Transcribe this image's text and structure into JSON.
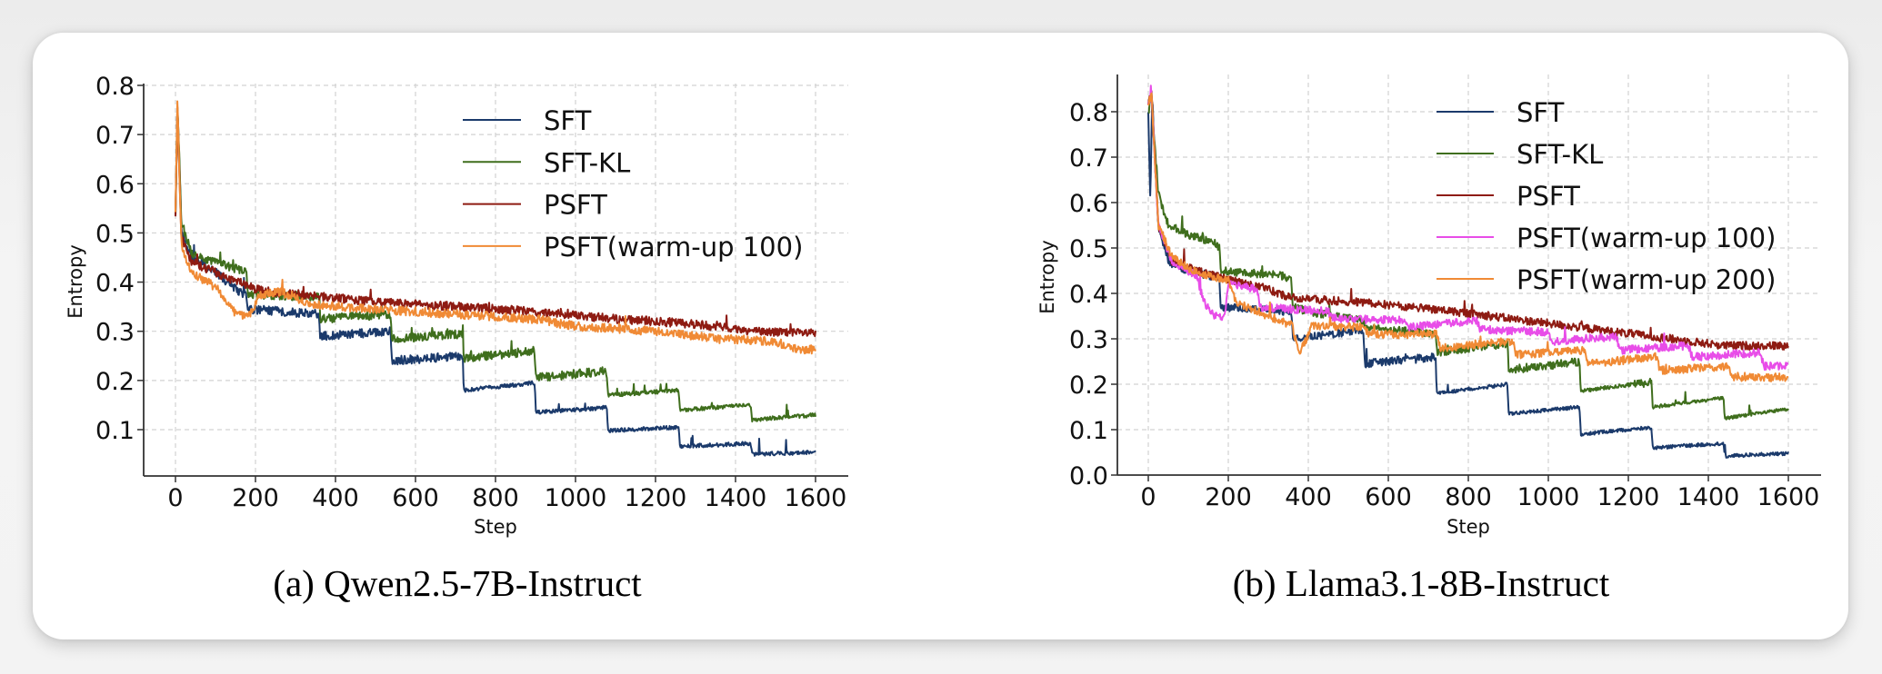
{
  "figure": {
    "captions": [
      "(a) Qwen2.5-7B-Instruct",
      "(b) Llama3.1-8B-Instruct"
    ]
  },
  "chart_data": [
    {
      "type": "line",
      "title": "",
      "caption": "(a) Qwen2.5-7B-Instruct",
      "xlabel": "Step",
      "ylabel": "Entropy",
      "xlim": [
        -80,
        1680
      ],
      "ylim": [
        0.005,
        0.81
      ],
      "xticks": [
        0,
        200,
        400,
        600,
        800,
        1000,
        1200,
        1400,
        1600
      ],
      "xtick_labels": [
        "0",
        "200",
        "400",
        "600",
        "800",
        "1000",
        "1200",
        "1400",
        "1600"
      ],
      "yticks": [
        0.1,
        0.2,
        0.3,
        0.4,
        0.5,
        0.6,
        0.7,
        0.8
      ],
      "ytick_labels": [
        "0.1",
        "0.2",
        "0.3",
        "0.4",
        "0.5",
        "0.6",
        "0.7",
        "0.8"
      ],
      "grid": true,
      "legend_position": "top-right",
      "series": [
        {
          "name": "SFT",
          "color": "#1b3a6b",
          "points": [
            [
              0,
              0.53
            ],
            [
              5,
              0.76
            ],
            [
              15,
              0.5
            ],
            [
              40,
              0.45
            ],
            [
              100,
              0.42
            ],
            [
              130,
              0.4
            ],
            [
              178,
              0.37
            ],
            [
              181,
              0.345
            ],
            [
              358,
              0.335
            ],
            [
              361,
              0.29
            ],
            [
              538,
              0.3
            ],
            [
              541,
              0.24
            ],
            [
              718,
              0.25
            ],
            [
              721,
              0.18
            ],
            [
              898,
              0.195
            ],
            [
              901,
              0.135
            ],
            [
              1078,
              0.145
            ],
            [
              1081,
              0.098
            ],
            [
              1258,
              0.105
            ],
            [
              1261,
              0.066
            ],
            [
              1438,
              0.072
            ],
            [
              1441,
              0.05
            ],
            [
              1600,
              0.054
            ]
          ]
        },
        {
          "name": "SFT-KL",
          "color": "#3f6e1d",
          "points": [
            [
              0,
              0.53
            ],
            [
              5,
              0.77
            ],
            [
              15,
              0.52
            ],
            [
              40,
              0.46
            ],
            [
              100,
              0.44
            ],
            [
              178,
              0.42
            ],
            [
              181,
              0.375
            ],
            [
              358,
              0.37
            ],
            [
              361,
              0.325
            ],
            [
              538,
              0.335
            ],
            [
              541,
              0.285
            ],
            [
              718,
              0.295
            ],
            [
              721,
              0.245
            ],
            [
              898,
              0.26
            ],
            [
              901,
              0.205
            ],
            [
              1078,
              0.22
            ],
            [
              1081,
              0.17
            ],
            [
              1258,
              0.18
            ],
            [
              1261,
              0.14
            ],
            [
              1438,
              0.15
            ],
            [
              1441,
              0.12
            ],
            [
              1600,
              0.13
            ]
          ]
        },
        {
          "name": "PSFT",
          "color": "#8e1b12",
          "points": [
            [
              0,
              0.53
            ],
            [
              5,
              0.76
            ],
            [
              15,
              0.49
            ],
            [
              40,
              0.44
            ],
            [
              100,
              0.42
            ],
            [
              200,
              0.385
            ],
            [
              300,
              0.375
            ],
            [
              500,
              0.36
            ],
            [
              700,
              0.35
            ],
            [
              900,
              0.34
            ],
            [
              1100,
              0.325
            ],
            [
              1300,
              0.315
            ],
            [
              1450,
              0.3
            ],
            [
              1600,
              0.295
            ]
          ]
        },
        {
          "name": "PSFT(warm-up 100)",
          "color": "#f08a35",
          "points": [
            [
              0,
              0.54
            ],
            [
              5,
              0.77
            ],
            [
              15,
              0.47
            ],
            [
              40,
              0.42
            ],
            [
              100,
              0.39
            ],
            [
              130,
              0.36
            ],
            [
              150,
              0.335
            ],
            [
              185,
              0.33
            ],
            [
              210,
              0.375
            ],
            [
              260,
              0.38
            ],
            [
              300,
              0.37
            ],
            [
              330,
              0.355
            ],
            [
              500,
              0.345
            ],
            [
              700,
              0.335
            ],
            [
              900,
              0.325
            ],
            [
              1000,
              0.31
            ],
            [
              1200,
              0.3
            ],
            [
              1350,
              0.285
            ],
            [
              1500,
              0.28
            ],
            [
              1540,
              0.265
            ],
            [
              1600,
              0.262
            ]
          ]
        }
      ]
    },
    {
      "type": "line",
      "title": "",
      "caption": "(b) Llama3.1-8B-Instruct",
      "xlabel": "Step",
      "ylabel": "Entropy",
      "xlim": [
        -80,
        1680
      ],
      "ylim": [
        0.0,
        0.88
      ],
      "xticks": [
        0,
        200,
        400,
        600,
        800,
        1000,
        1200,
        1400,
        1600
      ],
      "xtick_labels": [
        "0",
        "200",
        "400",
        "600",
        "800",
        "1000",
        "1200",
        "1400",
        "1600"
      ],
      "yticks": [
        0.0,
        0.1,
        0.2,
        0.3,
        0.4,
        0.5,
        0.6,
        0.7,
        0.8
      ],
      "ytick_labels": [
        "0.0",
        "0.1",
        "0.2",
        "0.3",
        "0.4",
        "0.5",
        "0.6",
        "0.7",
        "0.8"
      ],
      "grid": true,
      "legend_position": "top-right",
      "series": [
        {
          "name": "SFT",
          "color": "#1b3a6b",
          "points": [
            [
              0,
              0.8
            ],
            [
              5,
              0.61
            ],
            [
              10,
              0.83
            ],
            [
              25,
              0.55
            ],
            [
              50,
              0.47
            ],
            [
              100,
              0.45
            ],
            [
              150,
              0.44
            ],
            [
              178,
              0.43
            ],
            [
              181,
              0.37
            ],
            [
              358,
              0.36
            ],
            [
              361,
              0.3
            ],
            [
              538,
              0.32
            ],
            [
              541,
              0.245
            ],
            [
              718,
              0.26
            ],
            [
              721,
              0.18
            ],
            [
              898,
              0.2
            ],
            [
              901,
              0.135
            ],
            [
              1078,
              0.15
            ],
            [
              1081,
              0.09
            ],
            [
              1258,
              0.105
            ],
            [
              1261,
              0.06
            ],
            [
              1438,
              0.07
            ],
            [
              1441,
              0.042
            ],
            [
              1600,
              0.048
            ]
          ]
        },
        {
          "name": "SFT-KL",
          "color": "#3f6e1d",
          "points": [
            [
              0,
              0.8
            ],
            [
              8,
              0.83
            ],
            [
              25,
              0.62
            ],
            [
              50,
              0.55
            ],
            [
              100,
              0.53
            ],
            [
              170,
              0.51
            ],
            [
              178,
              0.5
            ],
            [
              181,
              0.45
            ],
            [
              330,
              0.44
            ],
            [
              358,
              0.43
            ],
            [
              361,
              0.37
            ],
            [
              400,
              0.36
            ],
            [
              538,
              0.34
            ],
            [
              541,
              0.325
            ],
            [
              718,
              0.31
            ],
            [
              721,
              0.27
            ],
            [
              898,
              0.29
            ],
            [
              901,
              0.23
            ],
            [
              1078,
              0.25
            ],
            [
              1081,
              0.185
            ],
            [
              1258,
              0.205
            ],
            [
              1261,
              0.15
            ],
            [
              1438,
              0.17
            ],
            [
              1441,
              0.125
            ],
            [
              1600,
              0.145
            ]
          ]
        },
        {
          "name": "PSFT",
          "color": "#8e1b12",
          "points": [
            [
              0,
              0.82
            ],
            [
              8,
              0.84
            ],
            [
              25,
              0.55
            ],
            [
              60,
              0.47
            ],
            [
              120,
              0.45
            ],
            [
              200,
              0.43
            ],
            [
              280,
              0.415
            ],
            [
              360,
              0.39
            ],
            [
              540,
              0.38
            ],
            [
              720,
              0.365
            ],
            [
              900,
              0.345
            ],
            [
              1080,
              0.325
            ],
            [
              1260,
              0.305
            ],
            [
              1440,
              0.285
            ],
            [
              1600,
              0.285
            ]
          ]
        },
        {
          "name": "PSFT(warm-up 100)",
          "color": "#e84de8",
          "points": [
            [
              0,
              0.82
            ],
            [
              8,
              0.84
            ],
            [
              25,
              0.55
            ],
            [
              60,
              0.47
            ],
            [
              100,
              0.45
            ],
            [
              120,
              0.44
            ],
            [
              140,
              0.38
            ],
            [
              160,
              0.355
            ],
            [
              190,
              0.345
            ],
            [
              200,
              0.42
            ],
            [
              270,
              0.41
            ],
            [
              280,
              0.37
            ],
            [
              450,
              0.36
            ],
            [
              460,
              0.345
            ],
            [
              640,
              0.34
            ],
            [
              650,
              0.325
            ],
            [
              820,
              0.34
            ],
            [
              830,
              0.32
            ],
            [
              1000,
              0.315
            ],
            [
              1010,
              0.295
            ],
            [
              1170,
              0.305
            ],
            [
              1180,
              0.275
            ],
            [
              1350,
              0.285
            ],
            [
              1360,
              0.26
            ],
            [
              1530,
              0.27
            ],
            [
              1540,
              0.24
            ],
            [
              1600,
              0.24
            ]
          ]
        },
        {
          "name": "PSFT(warm-up 200)",
          "color": "#f08a35",
          "points": [
            [
              0,
              0.82
            ],
            [
              8,
              0.84
            ],
            [
              25,
              0.55
            ],
            [
              60,
              0.48
            ],
            [
              100,
              0.455
            ],
            [
              150,
              0.44
            ],
            [
              200,
              0.43
            ],
            [
              220,
              0.38
            ],
            [
              300,
              0.35
            ],
            [
              360,
              0.33
            ],
            [
              375,
              0.27
            ],
            [
              390,
              0.29
            ],
            [
              410,
              0.33
            ],
            [
              540,
              0.325
            ],
            [
              550,
              0.31
            ],
            [
              720,
              0.31
            ],
            [
              730,
              0.28
            ],
            [
              910,
              0.295
            ],
            [
              920,
              0.265
            ],
            [
              1090,
              0.275
            ],
            [
              1100,
              0.245
            ],
            [
              1270,
              0.26
            ],
            [
              1280,
              0.23
            ],
            [
              1450,
              0.24
            ],
            [
              1460,
              0.215
            ],
            [
              1600,
              0.215
            ]
          ]
        }
      ]
    }
  ]
}
